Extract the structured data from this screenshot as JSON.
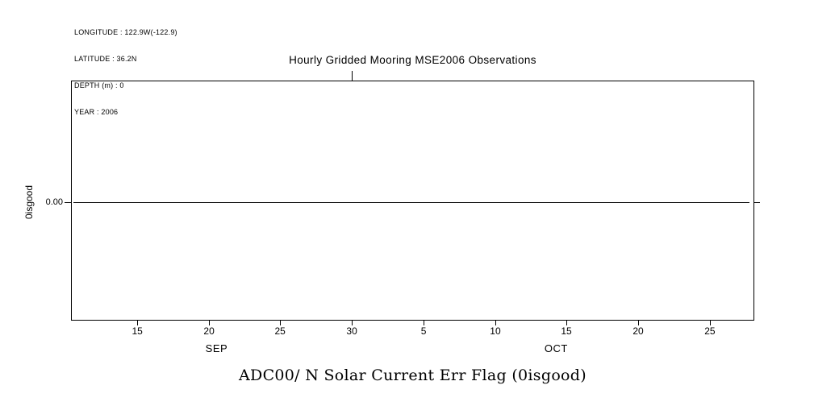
{
  "colors": {
    "background": "#ffffff",
    "foreground": "#000000"
  },
  "meta": {
    "lines": [
      "LONGITUDE : 122.9W(-122.9)",
      "LATITUDE : 36.2N",
      "DEPTH (m) : 0",
      "YEAR : 2006"
    ]
  },
  "chart_data": {
    "type": "line",
    "title": "Hourly Gridded Mooring MSE2006 Observations",
    "caption": "ADC00/ N Solar Current Err Flag (0isgood)",
    "ylabel": "0isgood",
    "xlabel": "",
    "grid": false,
    "legend": false,
    "x_axis": {
      "ticks": [
        {
          "label": "15",
          "pos": 9.7
        },
        {
          "label": "20",
          "pos": 20.2
        },
        {
          "label": "25",
          "pos": 30.6
        },
        {
          "label": "30",
          "pos": 41.1
        },
        {
          "label": "5",
          "pos": 51.6
        },
        {
          "label": "10",
          "pos": 62.1
        },
        {
          "label": "15",
          "pos": 72.5
        },
        {
          "label": "20",
          "pos": 83.0
        },
        {
          "label": "25",
          "pos": 93.5
        }
      ],
      "month_labels": [
        {
          "label": "SEP",
          "pos": 21.3
        },
        {
          "label": "OCT",
          "pos": 71.0
        }
      ],
      "top_ticks": [
        {
          "pos": 41.1
        }
      ]
    },
    "y_axis": {
      "ticks": [
        {
          "label": "0.00",
          "value": 0.0,
          "pos": 50.7
        }
      ]
    },
    "series": [
      {
        "name": "ADC00/ N Solar Current Err Flag",
        "constant_value": 0.0,
        "note": "flat line at 0.00 spanning the full time axis"
      }
    ]
  }
}
